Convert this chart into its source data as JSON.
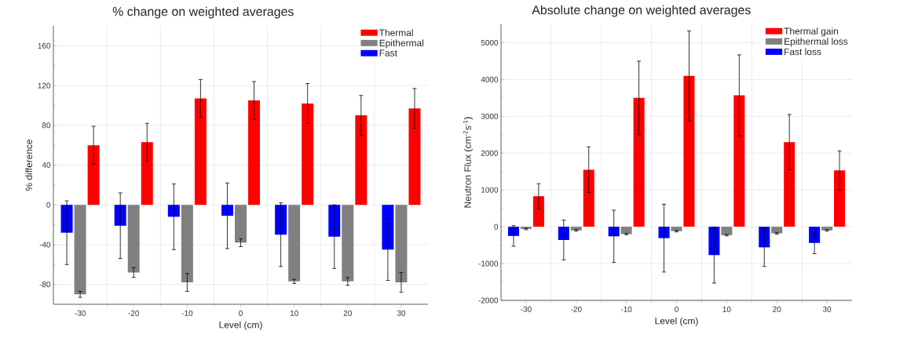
{
  "chart_data": [
    {
      "type": "bar",
      "title": "% change on weighted averages",
      "xlabel": "Level (cm)",
      "ylabel": "% difference",
      "categories": [
        "-30",
        "-20",
        "-10",
        "0",
        "10",
        "20",
        "30"
      ],
      "series": [
        {
          "name": "Fast",
          "color": "#0000ff",
          "values": [
            -28,
            -21,
            -12,
            -11,
            -30,
            -32,
            -45
          ],
          "errors": [
            32,
            33,
            33,
            33,
            32,
            32,
            31
          ]
        },
        {
          "name": "Epithermal",
          "color": "#808080",
          "values": [
            -90,
            -68,
            -78,
            -38,
            -77,
            -77,
            -78
          ],
          "errors": [
            3,
            5,
            9,
            4,
            2,
            4,
            10
          ]
        },
        {
          "name": "Thermal",
          "color": "#ff0000",
          "values": [
            60,
            63,
            107,
            105,
            102,
            90,
            97
          ],
          "errors": [
            19,
            19,
            19,
            19,
            20,
            20,
            20
          ]
        }
      ],
      "ylim": [
        -100,
        180
      ],
      "yticks": [
        -80,
        -40,
        0,
        40,
        80,
        120,
        160
      ],
      "grid": true,
      "legend": "top right"
    },
    {
      "type": "bar",
      "title": "Absolute change on weighted averages",
      "xlabel": "Level (cm)",
      "ylabel": "Neutron Flux (cm$^{-2}$s$^{-1}$)",
      "categories": [
        "-30",
        "-20",
        "-10",
        "0",
        "10",
        "20",
        "30"
      ],
      "series": [
        {
          "name": "Fast loss",
          "color": "#0000ff",
          "values": [
            -250,
            -360,
            -260,
            -310,
            -770,
            -560,
            -440
          ],
          "errors": [
            280,
            540,
            710,
            920,
            760,
            520,
            290
          ]
        },
        {
          "name": "Epithermal loss",
          "color": "#808080",
          "values": [
            -60,
            -100,
            -200,
            -120,
            -230,
            -180,
            -100
          ],
          "errors": [
            20,
            20,
            20,
            20,
            20,
            20,
            20
          ]
        },
        {
          "name": "Thermal gain",
          "color": "#ff0000",
          "values": [
            830,
            1550,
            3500,
            4100,
            3570,
            2300,
            1530
          ],
          "errors": [
            340,
            620,
            1000,
            1220,
            1100,
            750,
            530
          ]
        }
      ],
      "ylim": [
        -2000,
        5500
      ],
      "yticks": [
        -2000,
        -1000,
        0,
        1000,
        2000,
        3000,
        4000,
        5000
      ],
      "grid": true,
      "legend": "top right"
    }
  ]
}
